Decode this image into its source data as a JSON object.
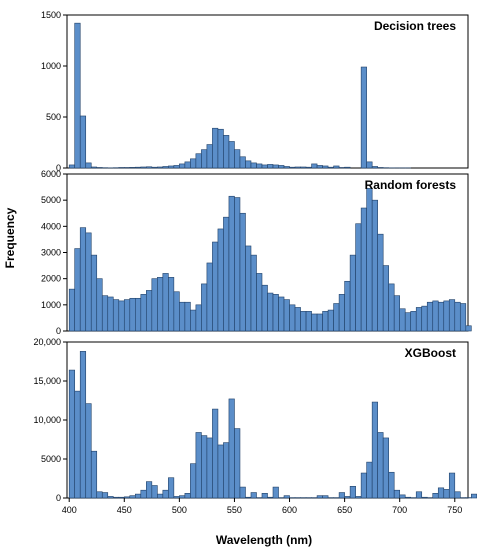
{
  "chart_data": {
    "type": "bar",
    "xlabel": "Wavelength (nm)",
    "ylabel": "Frequency",
    "x_ticks": [
      "400",
      "450",
      "500",
      "550",
      "600",
      "650",
      "700",
      "750"
    ],
    "xlim": [
      398,
      762
    ],
    "bin_start": 400,
    "bin_width": 5,
    "bar_color": "#5b8ec9",
    "bar_edge_color": "#1f3f66",
    "panels": [
      {
        "title": "Decision trees",
        "ylim": [
          0,
          1500
        ],
        "y_ticks": [
          "0",
          "500",
          "1000",
          "1500"
        ],
        "y_tick_values": [
          0,
          500,
          1000,
          1500
        ],
        "values": [
          30,
          1420,
          510,
          50,
          10,
          5,
          3,
          2,
          3,
          5,
          5,
          6,
          8,
          10,
          12,
          8,
          10,
          15,
          20,
          25,
          40,
          60,
          90,
          140,
          180,
          230,
          390,
          380,
          320,
          260,
          180,
          110,
          70,
          50,
          40,
          30,
          35,
          30,
          25,
          15,
          8,
          10,
          10,
          8,
          40,
          25,
          20,
          8,
          20,
          5,
          8,
          0,
          0,
          990,
          60,
          15,
          5,
          3,
          2,
          1,
          1,
          1,
          0,
          0,
          0,
          0,
          0,
          0,
          0,
          0,
          0,
          0,
          0,
          0
        ]
      },
      {
        "title": "Random forests",
        "ylim": [
          0,
          6000
        ],
        "y_ticks": [
          "0",
          "1000",
          "2000",
          "3000",
          "4000",
          "5000",
          "6000"
        ],
        "y_tick_values": [
          0,
          1000,
          2000,
          3000,
          4000,
          5000,
          6000
        ],
        "values": [
          1600,
          3150,
          3950,
          3750,
          2900,
          2000,
          1350,
          1300,
          1200,
          1150,
          1200,
          1250,
          1250,
          1400,
          1550,
          2000,
          2050,
          2200,
          2050,
          1500,
          1100,
          1100,
          800,
          1000,
          1800,
          2600,
          3400,
          3900,
          4350,
          5150,
          5100,
          4500,
          3250,
          2900,
          2200,
          1750,
          1450,
          1400,
          1300,
          1200,
          1000,
          900,
          750,
          750,
          650,
          650,
          750,
          800,
          1050,
          1400,
          1900,
          2900,
          4100,
          4700,
          5450,
          5000,
          3700,
          2500,
          1800,
          1350,
          850,
          700,
          750,
          900,
          950,
          1100,
          1150,
          1100,
          1150,
          1200,
          1100,
          1050,
          200
        ]
      },
      {
        "title": "XGBoost",
        "ylim": [
          0,
          20000
        ],
        "y_ticks": [
          "0",
          "5000",
          "10,000",
          "15,000",
          "20,000"
        ],
        "y_tick_values": [
          0,
          5000,
          10000,
          15000,
          20000
        ],
        "values": [
          16400,
          13700,
          18800,
          12100,
          6000,
          800,
          700,
          200,
          100,
          100,
          150,
          300,
          500,
          1000,
          2100,
          1600,
          500,
          1000,
          2600,
          200,
          300,
          600,
          4400,
          8400,
          8000,
          7700,
          11400,
          6800,
          7100,
          12700,
          8900,
          1400,
          100,
          700,
          50,
          600,
          100,
          1400,
          50,
          300,
          50,
          50,
          50,
          50,
          50,
          300,
          300,
          50,
          50,
          700,
          200,
          1500,
          200,
          3200,
          4600,
          12300,
          8400,
          7700,
          3300,
          1000,
          400,
          100,
          50,
          800,
          100,
          50,
          600,
          1300,
          1100,
          3200,
          800,
          50,
          50,
          500
        ]
      }
    ]
  }
}
